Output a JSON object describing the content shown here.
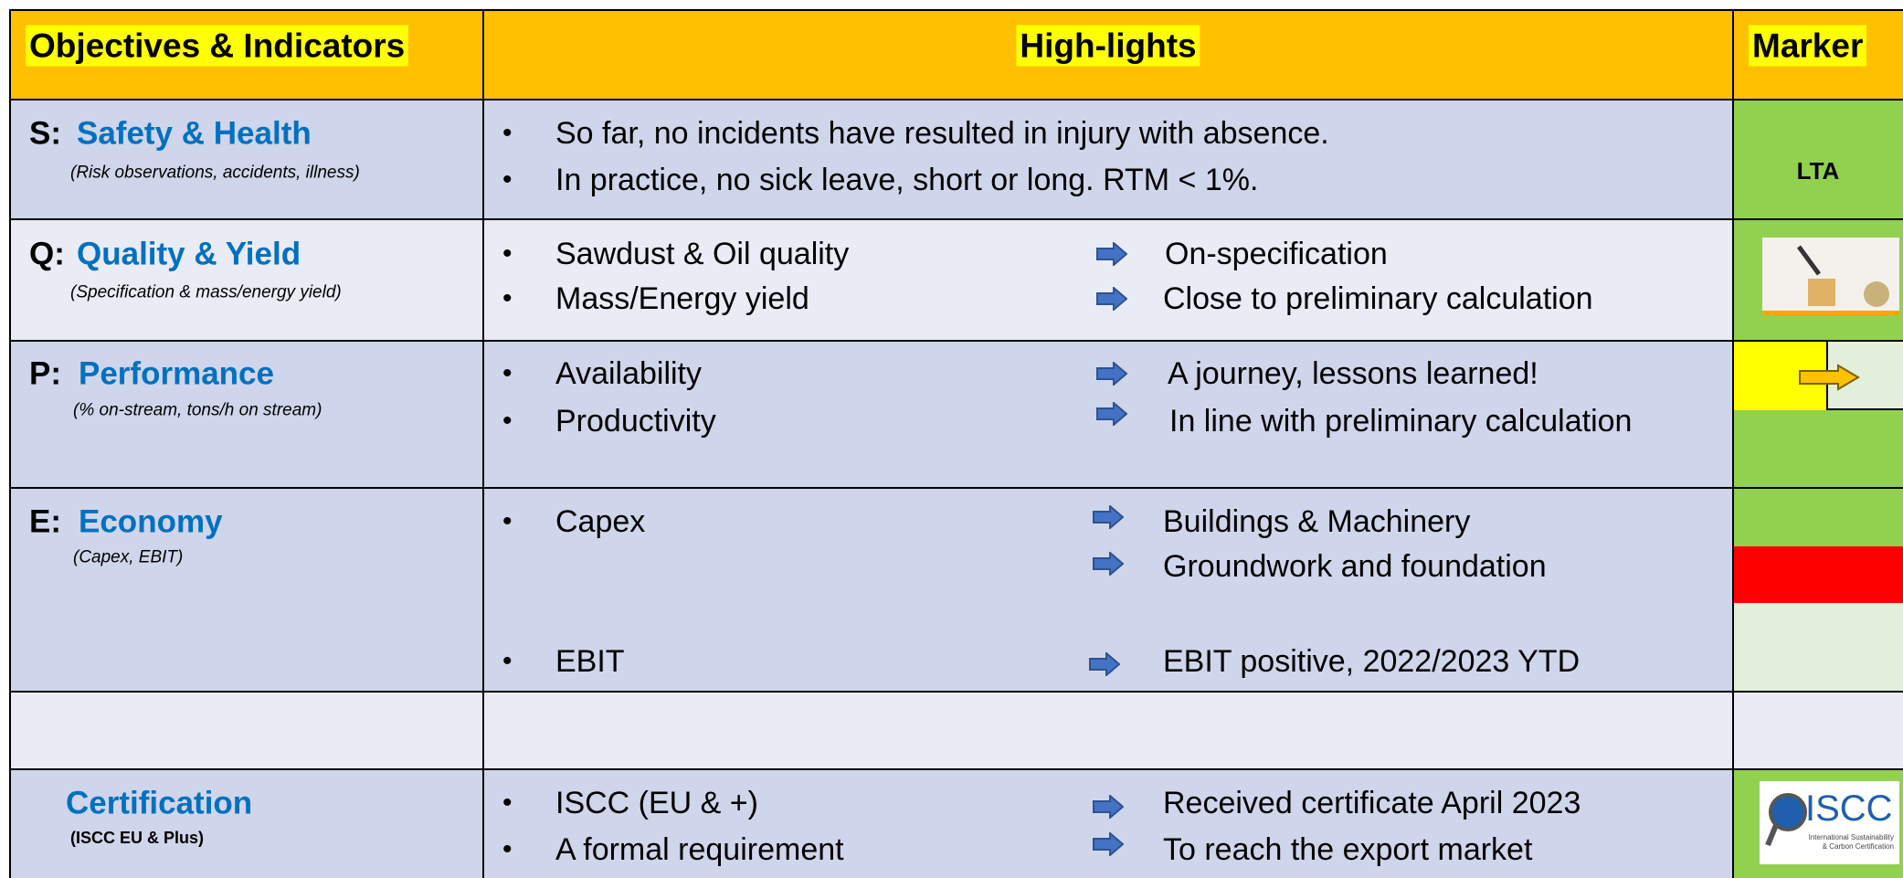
{
  "header": {
    "col1": "Objectives & Indicators",
    "col2": "High-lights",
    "col3": "Marker"
  },
  "rows": [
    {
      "letter": "S:",
      "title": "Safety & Health",
      "subtitle": "(Risk observations, accidents, illness)",
      "items": [
        {
          "label": "So far, no incidents have resulted in injury with absence."
        },
        {
          "label": "In practice, no sick leave, short or long. RTM < 1%."
        }
      ],
      "marker": "LTA"
    },
    {
      "letter": "Q:",
      "title": "Quality & Yield",
      "subtitle": "(Specification & mass/energy yield)",
      "items": [
        {
          "label": "Sawdust & Oil quality",
          "results": [
            "On-specification"
          ]
        },
        {
          "label": "Mass/Energy yield",
          "results": [
            "Close to preliminary calculation"
          ]
        }
      ]
    },
    {
      "letter": "P:",
      "title": "Performance",
      "subtitle": "(% on-stream, tons/h on stream)",
      "items": [
        {
          "label": "Availability",
          "results": [
            "A journey, lessons learned!"
          ]
        },
        {
          "label": "Productivity",
          "results": [
            "In line with preliminary calculation"
          ]
        }
      ]
    },
    {
      "letter": "E:",
      "title": "Economy",
      "subtitle": "(Capex, EBIT)",
      "items": [
        {
          "label": "Capex",
          "results": [
            "Buildings & Machinery",
            "Groundwork and foundation"
          ]
        },
        {
          "label": "EBIT",
          "results": [
            "EBIT positive, 2022/2023 YTD"
          ]
        }
      ]
    },
    {
      "title": "Certification",
      "subtitle": "(ISCC EU & Plus)",
      "items": [
        {
          "label": "ISCC (EU & +)",
          "results": [
            "Received certificate April 2023"
          ]
        },
        {
          "label": "A formal requirement",
          "results": [
            "To reach the export market"
          ]
        }
      ],
      "marker_logo": {
        "name": "ISCC",
        "line1": "International Sustainability",
        "line2": "& Carbon Certification"
      }
    }
  ]
}
